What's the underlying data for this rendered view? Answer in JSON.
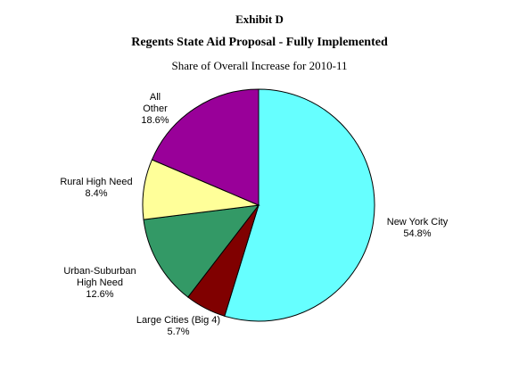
{
  "chart_data": {
    "type": "pie",
    "title": "Exhibit D",
    "subtitle": "Regents State Aid Proposal - Fully Implemented",
    "caption": "Share of Overall Increase for 2010-11",
    "slices": [
      {
        "name": "New York City",
        "value_label": "54.8%",
        "value": 54.8,
        "color": "#66ffff"
      },
      {
        "name": "Large Cities (Big 4)",
        "value_label": "5.7%",
        "value": 5.7,
        "color": "#800000"
      },
      {
        "name": "Urban-Suburban High Need",
        "value_label": "12.6%",
        "value": 12.6,
        "color": "#339966"
      },
      {
        "name": "Rural High Need",
        "value_label": "8.4%",
        "value": 8.4,
        "color": "#ffff99"
      },
      {
        "name": "All Other",
        "value_label": "18.6%",
        "value": 18.6,
        "color": "#990099"
      }
    ]
  }
}
